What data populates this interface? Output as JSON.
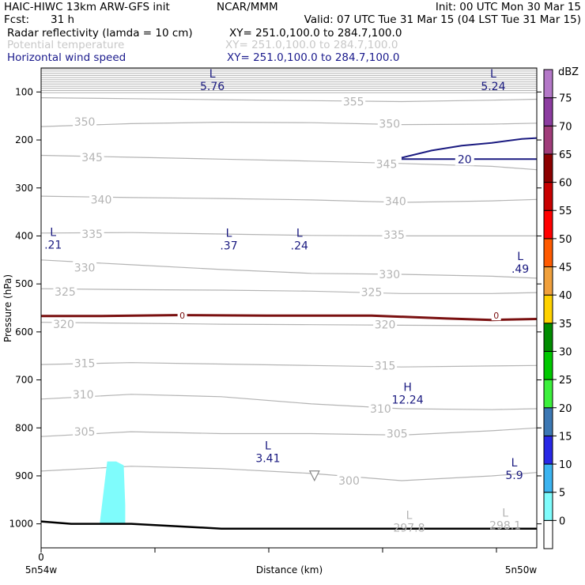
{
  "header": {
    "model": "HAIC-HIWC 13km ARW-GFS init",
    "org": "NCAR/MMM",
    "init": "Init: 00 UTC Mon 30 Mar 15",
    "fcst_label": "Fcst:",
    "fcst_value": "31 h",
    "valid": "Valid: 07 UTC Tue 31 Mar 15 (04 LST Tue 31 Mar 15)",
    "fields": [
      {
        "name": "Radar reflectivity (lamda = 10 cm)",
        "xy": "XY= 251.0,100.0 to 284.7,100.0",
        "color": "#000000"
      },
      {
        "name": "Potential temperature",
        "xy": "XY= 251.0,100.0 to 284.7,100.0",
        "color": "#c8c8c8"
      },
      {
        "name": "Horizontal wind speed",
        "xy": "XY= 251.0,100.0 to 284.7,100.0",
        "color": "#1a1a8c"
      }
    ]
  },
  "colors": {
    "theta": "#b4b4b4",
    "wind": "#1a1a80",
    "freezing": "#7a1010",
    "terrain": "#000000",
    "reflectivity_5": "#7ffcfc"
  },
  "chart_data": {
    "type": "cross-section",
    "xlabel": "Distance (km)",
    "ylabel": "Pressure (hPa)",
    "x_start_label": "5n54w",
    "x_end_label": "5n50w",
    "x_ticks": [
      "0"
    ],
    "xlim": [
      0,
      33
    ],
    "ylim": [
      1050,
      50
    ],
    "y_ticks": [
      100,
      200,
      300,
      400,
      500,
      600,
      700,
      800,
      900,
      1000
    ],
    "colorbar": {
      "unit": "dBZ",
      "levels": [
        0,
        5,
        10,
        15,
        20,
        25,
        30,
        35,
        40,
        45,
        50,
        55,
        60,
        65,
        70,
        75
      ],
      "colors": [
        "#ffffff",
        "#7ffcfc",
        "#3cb4f0",
        "#2828e6",
        "#3c78b4",
        "#3cf03c",
        "#00c800",
        "#008c00",
        "#ffd200",
        "#f0a03c",
        "#ff5a00",
        "#ff0000",
        "#c80000",
        "#8c0000",
        "#a03c7a",
        "#8c3ca0",
        "#b478c8"
      ]
    },
    "theta_contours": [
      {
        "label": "355",
        "x": [
          0,
          6,
          12,
          18,
          24,
          30,
          33
        ],
        "y": [
          112,
          114,
          116,
          118,
          120,
          117,
          115
        ]
      },
      {
        "label": "350",
        "x": [
          0,
          6,
          12,
          18,
          24,
          30,
          33
        ],
        "y": [
          172,
          166,
          163,
          164,
          168,
          167,
          165
        ]
      },
      {
        "label": "345",
        "x": [
          0,
          6,
          12,
          18,
          24,
          30,
          33
        ],
        "y": [
          232,
          236,
          240,
          244,
          249,
          255,
          262
        ]
      },
      {
        "label": "340",
        "x": [
          0,
          6,
          12,
          18,
          24,
          30,
          33
        ],
        "y": [
          317,
          320,
          322,
          325,
          330,
          327,
          324
        ]
      },
      {
        "label": "335",
        "x": [
          0,
          6,
          12,
          18,
          24,
          30,
          33
        ],
        "y": [
          394,
          393,
          396,
          399,
          400,
          400,
          400
        ]
      },
      {
        "label": "330",
        "x": [
          0,
          6,
          12,
          18,
          24,
          30,
          33
        ],
        "y": [
          450,
          460,
          470,
          478,
          480,
          484,
          488
        ]
      },
      {
        "label": "325",
        "x": [
          0,
          6,
          12,
          18,
          24,
          30,
          33
        ],
        "y": [
          510,
          512,
          513,
          515,
          520,
          520,
          518
        ]
      },
      {
        "label": "320",
        "x": [
          0,
          6,
          12,
          18,
          24,
          30,
          33
        ],
        "y": [
          580,
          582,
          584,
          585,
          586,
          587,
          587
        ]
      },
      {
        "label": "315",
        "x": [
          0,
          6,
          12,
          18,
          24,
          30,
          33
        ],
        "y": [
          668,
          664,
          667,
          670,
          673,
          671,
          670
        ]
      },
      {
        "label": "310",
        "x": [
          0,
          6,
          12,
          18,
          24,
          30,
          33
        ],
        "y": [
          740,
          730,
          735,
          750,
          760,
          762,
          760
        ]
      },
      {
        "label": "305",
        "x": [
          0,
          6,
          12,
          18,
          24,
          30,
          33
        ],
        "y": [
          818,
          808,
          812,
          812,
          815,
          806,
          800
        ]
      },
      {
        "label": "300",
        "x": [
          0,
          6,
          12,
          18,
          24,
          30,
          33
        ],
        "y": [
          890,
          880,
          885,
          895,
          910,
          900,
          893
        ]
      }
    ],
    "wind_contour": {
      "label": "20",
      "x": [
        24,
        26,
        28,
        30,
        32,
        33
      ],
      "y": [
        237,
        222,
        212,
        206,
        198,
        196
      ]
    },
    "wind_contour_flat": {
      "x": [
        24,
        33
      ],
      "y": [
        240,
        240
      ]
    },
    "freezing_level": {
      "label": "0",
      "x": [
        0,
        4,
        9,
        15,
        22,
        27,
        30,
        33
      ],
      "y": [
        567,
        567,
        565,
        566,
        566,
        572,
        575,
        573
      ]
    },
    "terrain": {
      "x": [
        0,
        2,
        3,
        6,
        12,
        18,
        24,
        30,
        33
      ],
      "y": [
        995,
        1000,
        1000,
        1000,
        1010,
        1010,
        1010,
        1010,
        1010
      ]
    },
    "reflectivity_region": {
      "dbz": 5,
      "x": [
        3.9,
        4.4,
        5.0,
        5.5,
        5.6,
        5.6,
        3.9
      ],
      "y": [
        1000,
        870,
        870,
        878,
        960,
        1000,
        1000
      ]
    },
    "markers": [
      {
        "sym": "L",
        "value": "5.76",
        "color": "wind",
        "x": 11.4,
        "y": 70
      },
      {
        "sym": "L",
        "value": "5.24",
        "color": "wind",
        "x": 30.1,
        "y": 70
      },
      {
        "sym": "L",
        "value": ".21",
        "color": "wind",
        "x": 0.8,
        "y": 400
      },
      {
        "sym": "L",
        "value": ".37",
        "color": "wind",
        "x": 12.5,
        "y": 402
      },
      {
        "sym": "L",
        "value": ".24",
        "color": "wind",
        "x": 17.2,
        "y": 402
      },
      {
        "sym": "L",
        "value": ".49",
        "color": "wind",
        "x": 31.9,
        "y": 450
      },
      {
        "sym": "H",
        "value": "12.24",
        "color": "wind",
        "x": 24.4,
        "y": 723
      },
      {
        "sym": "L",
        "value": "3.41",
        "color": "wind",
        "x": 15.1,
        "y": 845
      },
      {
        "sym": "L",
        "value": "5.9",
        "color": "wind",
        "x": 31.5,
        "y": 880
      },
      {
        "sym": "L",
        "value": "297.8",
        "color": "theta",
        "x": 24.5,
        "y": 990
      },
      {
        "sym": "L",
        "value": "298.1",
        "color": "theta",
        "x": 30.9,
        "y": 985
      }
    ],
    "theta_labels": [
      {
        "text": "355",
        "x": 20.8,
        "y": 120
      },
      {
        "text": "350",
        "x": 2.9,
        "y": 162
      },
      {
        "text": "350",
        "x": 23.2,
        "y": 166
      },
      {
        "text": "345",
        "x": 3.4,
        "y": 236
      },
      {
        "text": "345",
        "x": 23.0,
        "y": 250
      },
      {
        "text": "340",
        "x": 4.0,
        "y": 324
      },
      {
        "text": "340",
        "x": 23.6,
        "y": 328
      },
      {
        "text": "335",
        "x": 3.4,
        "y": 396
      },
      {
        "text": "335",
        "x": 23.5,
        "y": 398
      },
      {
        "text": "330",
        "x": 2.9,
        "y": 466
      },
      {
        "text": "330",
        "x": 23.2,
        "y": 480
      },
      {
        "text": "325",
        "x": 1.6,
        "y": 516
      },
      {
        "text": "325",
        "x": 22.0,
        "y": 517
      },
      {
        "text": "320",
        "x": 1.5,
        "y": 584
      },
      {
        "text": "320",
        "x": 22.9,
        "y": 585
      },
      {
        "text": "315",
        "x": 2.9,
        "y": 665
      },
      {
        "text": "315",
        "x": 22.9,
        "y": 670
      },
      {
        "text": "310",
        "x": 2.8,
        "y": 730
      },
      {
        "text": "310",
        "x": 22.6,
        "y": 760
      },
      {
        "text": "305",
        "x": 2.9,
        "y": 808
      },
      {
        "text": "305",
        "x": 23.7,
        "y": 812
      },
      {
        "text": "300",
        "x": 20.5,
        "y": 910
      }
    ],
    "triangle_marker": {
      "x": 18.2,
      "y": 898
    }
  }
}
